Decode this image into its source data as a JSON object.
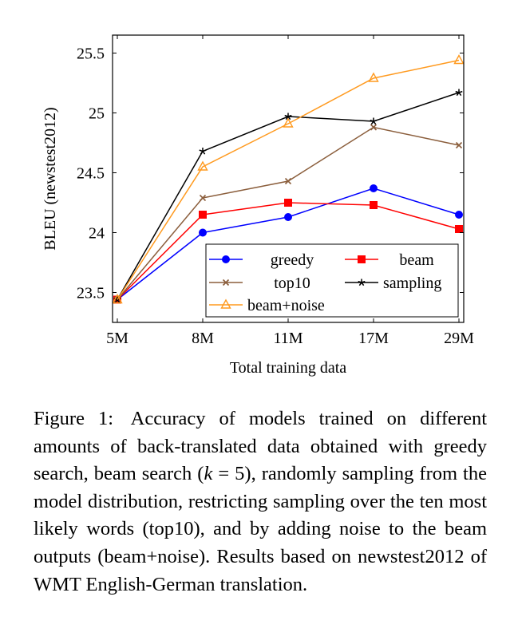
{
  "chart_data": {
    "type": "line",
    "title": "",
    "xlabel": "Total training data",
    "ylabel": "BLEU (newstest2012)",
    "categories": [
      "5M",
      "8M",
      "11M",
      "17M",
      "29M"
    ],
    "ylim": [
      23.25,
      25.65
    ],
    "yticks": [
      23.5,
      24,
      24.5,
      25,
      25.5
    ],
    "ytick_labels": [
      "23.5",
      "24",
      "24.5",
      "25",
      "25.5"
    ],
    "legend_position": "bottom-right",
    "grid": false,
    "series": [
      {
        "name": "greedy",
        "color": "#0000ff",
        "marker": "circle",
        "values": [
          23.44,
          24.0,
          24.13,
          24.37,
          24.15
        ]
      },
      {
        "name": "beam",
        "color": "#ff0000",
        "marker": "square",
        "values": [
          23.44,
          24.15,
          24.25,
          24.23,
          24.03
        ]
      },
      {
        "name": "top10",
        "color": "#8b5e3c",
        "marker": "x",
        "values": [
          23.44,
          24.29,
          24.43,
          24.88,
          24.73
        ]
      },
      {
        "name": "sampling",
        "color": "#000000",
        "marker": "star",
        "values": [
          23.44,
          24.68,
          24.97,
          24.93,
          25.17
        ]
      },
      {
        "name": "beam+noise",
        "color": "#ff9a1f",
        "marker": "triangle",
        "values": [
          23.44,
          24.55,
          24.91,
          25.29,
          25.44
        ]
      }
    ]
  },
  "caption": {
    "label": "Figure 1:",
    "part1": "Accuracy of models trained on different amounts of back-translated data obtained with greedy search, beam search (",
    "k_symbol": "k",
    "equals": " = ",
    "k_value": "5",
    "part2": "), randomly sampling from the model distribution, restricting sampling over the ten most likely words (top10), and by adding noise to the beam outputs (beam+noise). Results based on newstest2012 of WMT English-German translation."
  }
}
